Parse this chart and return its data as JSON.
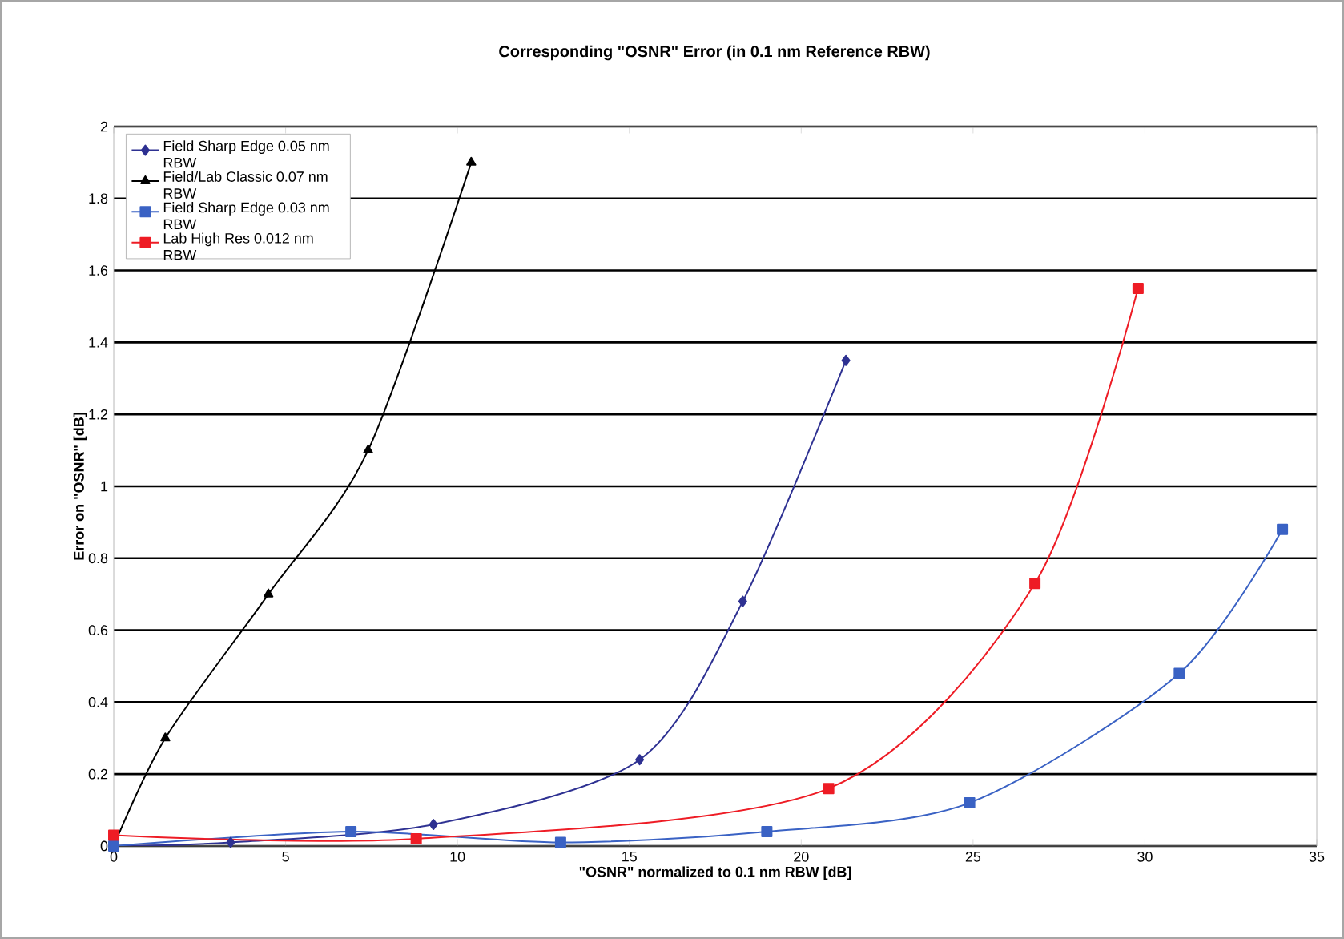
{
  "chart_data": {
    "type": "line",
    "title": "Corresponding \"OSNR\" Error (in 0.1 nm Reference RBW)",
    "xlabel": "\"OSNR\" normalized to 0.1 nm RBW [dB]",
    "ylabel": "Error on \"OSNR\" [dB]",
    "xlim": [
      0,
      35
    ],
    "xticks": [
      0,
      5,
      10,
      15,
      20,
      25,
      30,
      35
    ],
    "ylim": [
      0,
      2
    ],
    "yticks": [
      0,
      0.2,
      0.4,
      0.6,
      0.8,
      1,
      1.2,
      1.4,
      1.6,
      1.8,
      2
    ],
    "grid": "y",
    "legend": "top left",
    "line_style": "solid",
    "series": [
      {
        "name": "Field Sharp Edge 0.05 nm RBW",
        "color": "#2e3192",
        "marker": "diamond",
        "x": [
          0,
          3.4,
          9.3,
          15.3,
          18.3,
          21.3
        ],
        "values": [
          0,
          0.01,
          0.06,
          0.24,
          0.68,
          1.35
        ]
      },
      {
        "name": "Field/Lab Classic 0.07 nm RBW",
        "color": "#000000",
        "marker": "triangle",
        "x": [
          0,
          1.5,
          4.5,
          7.4,
          10.4
        ],
        "values": [
          0,
          0.3,
          0.7,
          1.1,
          1.9
        ]
      },
      {
        "name": "Field Sharp Edge 0.03 nm RBW",
        "color": "#3a62c4",
        "marker": "square",
        "x": [
          0,
          6.9,
          13,
          19,
          24.9,
          31,
          34
        ],
        "values": [
          0,
          0.04,
          0.01,
          0.04,
          0.12,
          0.48,
          0.88
        ]
      },
      {
        "name": "Lab High Res 0.012 nm RBW",
        "color": "#ee1c25",
        "marker": "square",
        "x": [
          0,
          8.8,
          20.8,
          26.8,
          29.8
        ],
        "values": [
          0.03,
          0.02,
          0.16,
          0.73,
          1.55
        ]
      }
    ]
  }
}
